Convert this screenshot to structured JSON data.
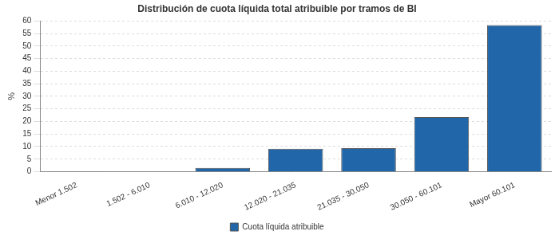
{
  "chart_data": {
    "type": "bar",
    "title": "Distribución de cuota líquida total atribuible por tramos de BI",
    "y_label": "%",
    "categories": [
      "Menor 1.502",
      "1.502 - 6.010",
      "6.010 - 12.020",
      "12.020 - 21.035",
      "21.035 - 30.050",
      "30.050 - 60.101",
      "Mayor 60.101"
    ],
    "series": [
      {
        "name": "Cuota líquida atribuible",
        "color": "#2166a8",
        "values": [
          0.1,
          0.2,
          1.5,
          9.1,
          9.4,
          21.7,
          58.4
        ]
      }
    ],
    "ylim": [
      0,
      60
    ],
    "yticks": [
      0,
      5,
      10,
      15,
      20,
      25,
      30,
      35,
      40,
      45,
      50,
      55,
      60
    ],
    "grid": true,
    "legend": "bottom"
  }
}
